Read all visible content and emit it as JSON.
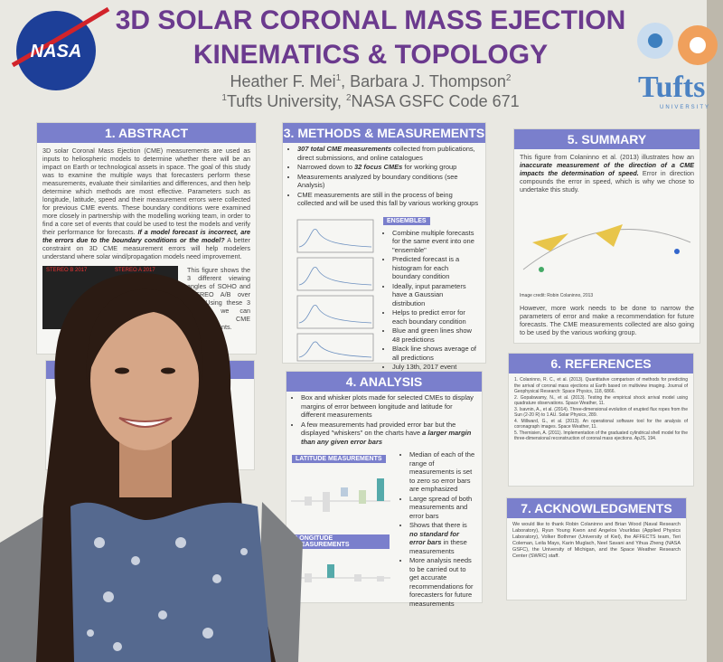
{
  "header": {
    "title_lines": [
      "3D SOLAR CORONAL MASS EJECTION",
      "KINEMATICS & TOPOLOGY"
    ],
    "authors": [
      "Heather F. Mei",
      "1",
      ", Barbara J. Thompson",
      "2"
    ],
    "affiliation": [
      "1",
      "Tufts University, ",
      "2",
      "NASA GSFC Code 671"
    ],
    "nasa_logo": "NASA",
    "tufts_logo": "Tufts",
    "tufts_sub": "UNIVERSITY"
  },
  "abstract": {
    "title": "1. ABSTRACT",
    "text": [
      "3D solar Coronal Mass Ejection (CME) measurements are used as inputs to heliospheric models to determine whether there will be an impact on Earth or technological assets in space. The goal of this study was to examine the multiple ways that forecasters perform these measurements, evaluate their similarities and differences, and then help determine which methods are most effective. Parameters such as longitude, latitude, speed and their measurement errors were collected for previous CME events. These boundary conditions were examined more closely in partnership with the modelling working team, in order to find a core set of events that could be used to test the models and verify their performance for forecasts. ",
      {
        "t": "If a model forecast is incorrect, are the errors due to the boundary conditions or the model?",
        "em": true
      },
      " A better constraint on 3D CME measurement errors will help modelers understand where solar wind/propagation models need improvement."
    ],
    "caption": "This figure shows the 3 different viewing angles of SOHO and STEREO A/B over time. Using these 3 images, we can triangulate CME measurements.",
    "image_labels": [
      "STEREO B 2017",
      "STEREO A 2017"
    ]
  },
  "methods": {
    "title": "3. METHODS & MEASUREMENTS",
    "bullets": [
      [
        {
          "t": "307 total CME measurements",
          "em": true
        },
        " collected from publications, direct submissions, and online catalogues"
      ],
      [
        "Narrowed down to ",
        {
          "t": "32 focus CMEs",
          "em": true
        },
        " for working group"
      ],
      [
        "Measurements analyzed by boundary conditions (see Analysis)"
      ],
      [
        "CME measurements are still in the process of being collected and will be used this fall by various working groups"
      ]
    ],
    "ensembles_label": "ENSEMBLES",
    "ensembles": [
      "Combine multiple forecasts for the same event into one \"ensemble\"",
      "Predicted forecast is a histogram for each boundary condition",
      "Ideally, input parameters have a Gaussian distribution",
      "Helps to predict error for each boundary condition",
      "Blue and green lines show 48 predictions",
      "Black line shows average of all predictions",
      "July 13th, 2017 event"
    ]
  },
  "summary": {
    "title": "5. SUMMARY",
    "text": [
      "This figure from Colaninno et al. (2013) illustrates how an ",
      {
        "t": "inaccurate measurement of the direction of a CME impacts the determination of speed.",
        "em": true
      },
      " Error in direction compounds the error in speed, which is why we chose to undertake this study."
    ],
    "credit": "Image credit: Robin Colaninno, 2013",
    "text2": "However, more work needs to be done to narrow the parameters of error and make a recommendation for future forecasts. The CME measurements collected are also going to be used by the various working group."
  },
  "analysis": {
    "title": "4. ANALYSIS",
    "bullets": [
      [
        "Box and whisker plots made for selected CMEs to display margins of error between longitude and latitude for different measurements"
      ],
      [
        "A few measurements had provided error bar but the displayed \"whiskers\" on the charts have ",
        {
          "t": "a larger margin than any given error bars",
          "em": true
        }
      ]
    ],
    "lat_label": "LATITUDE MEASUREMENTS",
    "lon_label": "LONGITUDE MEASUREMENTS",
    "side": [
      [
        "Median of each of the range of measurements is set to zero so error bars are emphasized"
      ],
      [
        "Large spread of both measurements and error bars"
      ],
      [
        "Shows that there is ",
        {
          "t": "no standard for error bars",
          "em": true
        },
        " in these measurements"
      ],
      [
        "More analysis needs to be carried out to get accurate recommendations for forecasters for future measurements"
      ]
    ]
  },
  "references": {
    "title": "6. REFERENCES",
    "items": [
      "1. Colaninno, R. C., et al. (2013). Quantitative comparison of methods for predicting the arrival of coronal mass ejections at Earth based on multiview imaging. Journal of Geophysical Research: Space Physics, 118, 6866.",
      "2. Gopalswamy, N., et al. (2013). Testing the empirical shock arrival model using quadrature observations. Space Weather, 11.",
      "3. Isavnin, A., et al. (2014). Three-dimensional evolution of erupted flux ropes from the Sun (2-20 R) to 1 AU. Solar Physics, 289.",
      "4. Millward, G., et al. (2013). An operational software tool for the analysis of coronagraph images. Space Weather, 11.",
      "5. Thernisien, A. (2011). Implementation of the graduated cylindrical shell model for the three-dimensional reconstruction of coronal mass ejections. ApJS, 194."
    ]
  },
  "acknowledgments": {
    "title": "7. ACKNOWLEDGMENTS",
    "text": "We would like to thank Robin Colaninno and Brian Wood (Naval Research Laboratory), Ryun Young Kwon and Angelos Vourlidas (Applied Physics Laboratory), Volker Bothmer (University of Kiel), the AFFECTS team, Teri Coleman, Leila Mays, Karin Muglach, Neel Savani and Yihua Zheng (NASA GSFC), the University of Michigan, and the Space Weather Research Center (SWRC) staff."
  }
}
